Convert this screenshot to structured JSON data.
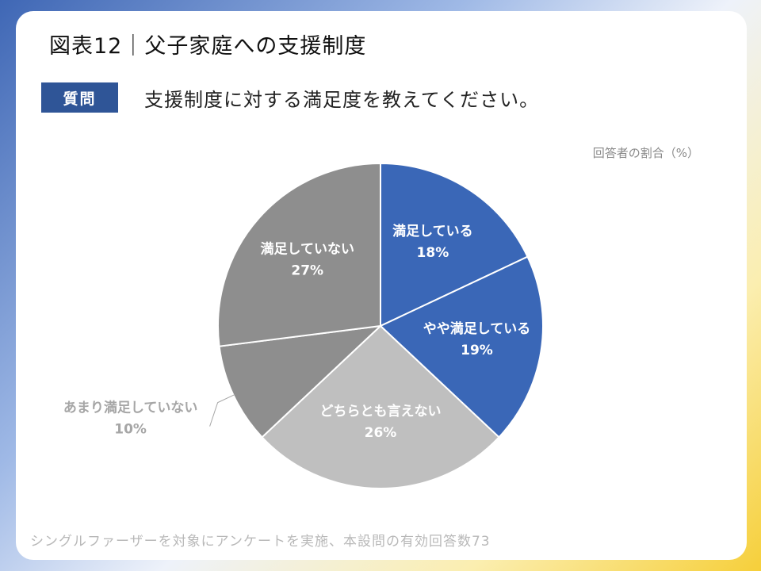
{
  "title": "図表12｜父子家庭への支援制度",
  "question_badge": "質問",
  "question_text": "支援制度に対する満足度を教えてください。",
  "unit_label": "回答者の割合（%）",
  "footer_note": "シングルファーザーを対象にアンケートを実施、本設問の有効回答数73",
  "colors": {
    "satisfied": "#3a67b7",
    "somewhat_satisfied": "#3a67b7",
    "neutral": "#bfbfbf",
    "somewhat_dissatisfied": "#8e8e8e",
    "dissatisfied": "#8e8e8e",
    "badge": "#2f5597"
  },
  "chart_data": {
    "type": "pie",
    "title": "支援制度に対する満足度",
    "unit": "%",
    "start_angle_deg": 0,
    "direction": "clockwise",
    "categories": [
      "満足している",
      "やや満足している",
      "どちらとも言えない",
      "あまり満足していない",
      "満足していない"
    ],
    "values": [
      18,
      19,
      26,
      10,
      27
    ],
    "value_labels": [
      "18%",
      "19%",
      "26%",
      "10%",
      "27%"
    ],
    "slice_colors": [
      "#3a67b7",
      "#3a67b7",
      "#bfbfbf",
      "#8e8e8e",
      "#8e8e8e"
    ],
    "label_colors": [
      "#ffffff",
      "#ffffff",
      "#ffffff",
      "#a6a6a6",
      "#ffffff"
    ],
    "label_outside": [
      false,
      false,
      false,
      true,
      false
    ]
  }
}
